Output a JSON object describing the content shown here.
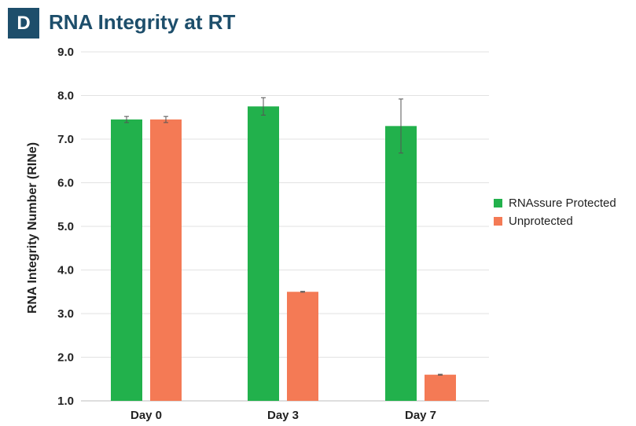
{
  "panel_label": "D",
  "chart_data": {
    "type": "bar",
    "title": "RNA Integrity at RT",
    "xlabel": "",
    "ylabel": "RNA Integrity Number (RINe)",
    "ylim": [
      1.0,
      9.0
    ],
    "yticks": [
      "1.0",
      "2.0",
      "3.0",
      "4.0",
      "5.0",
      "6.0",
      "7.0",
      "8.0",
      "9.0"
    ],
    "categories": [
      "Day 0",
      "Day 3",
      "Day 7"
    ],
    "series": [
      {
        "name": "RNAssure Protected",
        "color": "#22b14c",
        "values": [
          7.45,
          7.75,
          7.3
        ],
        "errors": [
          0.07,
          0.2,
          0.62
        ]
      },
      {
        "name": "Unprotected",
        "color": "#f47a55",
        "values": [
          7.45,
          3.5,
          1.6
        ],
        "errors": [
          0.07,
          0.01,
          0.01
        ]
      }
    ],
    "grid": true,
    "legend_position": "right"
  }
}
